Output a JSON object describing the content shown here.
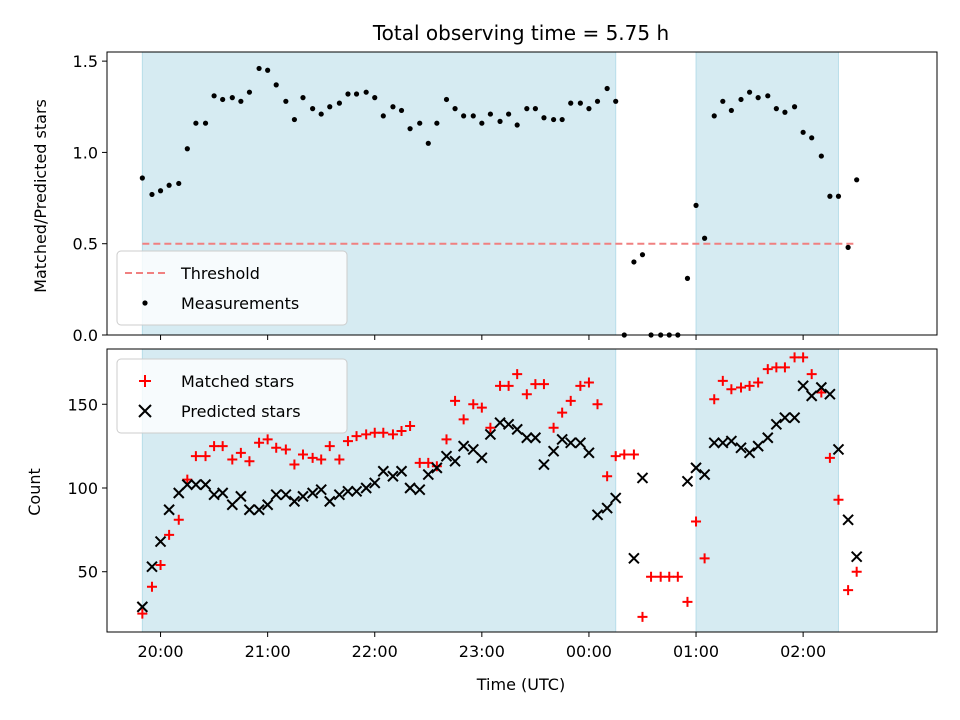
{
  "chart_data": [
    {
      "type": "scatter",
      "title": "Total observing time = 5.75 h",
      "ylabel": "Matched/Predicted stars",
      "xlabel": "",
      "ylim": [
        0,
        1.55
      ],
      "yticks": [
        0.0,
        0.5,
        1.0,
        1.5
      ],
      "ytick_labels": [
        "0.0",
        "0.5",
        "1.0",
        "1.5"
      ],
      "xticks": [
        20,
        21,
        22,
        23,
        24,
        25,
        26
      ],
      "xlim": [
        19.5,
        27.25
      ],
      "grid": false,
      "legend_position": "lower-left",
      "shaded_intervals": [
        [
          19.83,
          24.25
        ],
        [
          25.0,
          26.33
        ]
      ],
      "threshold": {
        "name": "Threshold",
        "value": 0.5,
        "x_range": [
          19.83,
          26.5
        ],
        "color": "#f08080"
      },
      "series": [
        {
          "name": "Measurements",
          "marker": "dot",
          "color": "#000000",
          "x": [
            19.83,
            19.92,
            20.0,
            20.08,
            20.17,
            20.25,
            20.33,
            20.42,
            20.5,
            20.58,
            20.67,
            20.75,
            20.83,
            20.92,
            21.0,
            21.08,
            21.17,
            21.25,
            21.33,
            21.42,
            21.5,
            21.58,
            21.67,
            21.75,
            21.83,
            21.92,
            22.0,
            22.08,
            22.17,
            22.25,
            22.33,
            22.42,
            22.5,
            22.58,
            22.67,
            22.75,
            22.83,
            22.92,
            23.0,
            23.08,
            23.17,
            23.25,
            23.33,
            23.42,
            23.5,
            23.58,
            23.67,
            23.75,
            23.83,
            23.92,
            24.0,
            24.08,
            24.17,
            24.25,
            24.33,
            24.42,
            24.5,
            24.58,
            24.67,
            24.75,
            24.83,
            24.92,
            25.0,
            25.08,
            25.17,
            25.25,
            25.33,
            25.42,
            25.5,
            25.58,
            25.67,
            25.75,
            25.83,
            25.92,
            26.0,
            26.08,
            26.17,
            26.25,
            26.33,
            26.42,
            26.5
          ],
          "y": [
            0.86,
            0.77,
            0.79,
            0.82,
            0.83,
            1.02,
            1.16,
            1.16,
            1.31,
            1.29,
            1.3,
            1.28,
            1.33,
            1.46,
            1.45,
            1.37,
            1.28,
            1.18,
            1.3,
            1.24,
            1.21,
            1.25,
            1.27,
            1.32,
            1.32,
            1.33,
            1.3,
            1.2,
            1.25,
            1.23,
            1.13,
            1.16,
            1.05,
            1.16,
            1.29,
            1.24,
            1.2,
            1.2,
            1.16,
            1.21,
            1.17,
            1.21,
            1.15,
            1.24,
            1.24,
            1.19,
            1.18,
            1.18,
            1.27,
            1.27,
            1.24,
            1.28,
            1.35,
            1.28,
            0.0,
            0.4,
            0.44,
            0.0,
            0.0,
            0.0,
            0.0,
            0.31,
            0.71,
            0.53,
            1.2,
            1.28,
            1.23,
            1.29,
            1.33,
            1.3,
            1.31,
            1.24,
            1.22,
            1.25,
            1.11,
            1.08,
            0.98,
            0.76,
            0.76,
            0.48,
            0.85
          ]
        }
      ]
    },
    {
      "type": "scatter",
      "title": "",
      "ylabel": "Count",
      "xlabel": "Time (UTC)",
      "ylim": [
        14,
        183
      ],
      "yticks": [
        50,
        100,
        150
      ],
      "ytick_labels": [
        "50",
        "100",
        "150"
      ],
      "xticks": [
        20,
        21,
        22,
        23,
        24,
        25,
        26
      ],
      "xtick_labels": [
        "20:00",
        "21:00",
        "22:00",
        "23:00",
        "00:00",
        "01:00",
        "02:00"
      ],
      "xlim": [
        19.5,
        27.25
      ],
      "grid": false,
      "legend_position": "upper-left",
      "shaded_intervals": [
        [
          19.83,
          24.25
        ],
        [
          25.0,
          26.33
        ]
      ],
      "series": [
        {
          "name": "Matched stars",
          "marker": "plus",
          "color": "#ff0000",
          "x": [
            19.83,
            19.92,
            20.0,
            20.08,
            20.17,
            20.25,
            20.33,
            20.42,
            20.5,
            20.58,
            20.67,
            20.75,
            20.83,
            20.92,
            21.0,
            21.08,
            21.17,
            21.25,
            21.33,
            21.42,
            21.5,
            21.58,
            21.67,
            21.75,
            21.83,
            21.92,
            22.0,
            22.08,
            22.17,
            22.25,
            22.33,
            22.42,
            22.5,
            22.58,
            22.67,
            22.75,
            22.83,
            22.92,
            23.0,
            23.08,
            23.17,
            23.25,
            23.33,
            23.42,
            23.5,
            23.58,
            23.67,
            23.75,
            23.83,
            23.92,
            24.0,
            24.08,
            24.17,
            24.25,
            24.33,
            24.42,
            24.5,
            24.58,
            24.67,
            24.75,
            24.83,
            24.92,
            25.0,
            25.08,
            25.17,
            25.25,
            25.33,
            25.42,
            25.5,
            25.58,
            25.67,
            25.75,
            25.83,
            25.92,
            26.0,
            26.08,
            26.17,
            26.25,
            26.33,
            26.42,
            26.5
          ],
          "y": [
            25,
            41,
            54,
            72,
            81,
            105,
            119,
            119,
            125,
            125,
            117,
            121,
            116,
            127,
            129,
            124,
            123,
            114,
            120,
            118,
            117,
            125,
            117,
            128,
            131,
            132,
            133,
            133,
            132,
            134,
            137,
            115,
            115,
            113,
            129,
            152,
            141,
            150,
            148,
            136,
            161,
            161,
            168,
            156,
            162,
            162,
            136,
            145,
            152,
            161,
            163,
            150,
            107,
            119,
            120,
            120,
            23,
            47,
            47,
            47,
            47,
            32,
            80,
            58,
            153,
            164,
            159,
            160,
            161,
            163,
            171,
            172,
            172,
            178,
            178,
            168,
            157,
            118,
            93,
            39,
            50
          ]
        },
        {
          "name": "Predicted stars",
          "marker": "x",
          "color": "#000000",
          "x": [
            19.83,
            19.92,
            20.0,
            20.08,
            20.17,
            20.25,
            20.33,
            20.42,
            20.5,
            20.58,
            20.67,
            20.75,
            20.83,
            20.92,
            21.0,
            21.08,
            21.17,
            21.25,
            21.33,
            21.42,
            21.5,
            21.58,
            21.67,
            21.75,
            21.83,
            21.92,
            22.0,
            22.08,
            22.17,
            22.25,
            22.33,
            22.42,
            22.5,
            22.58,
            22.67,
            22.75,
            22.83,
            22.92,
            23.0,
            23.08,
            23.17,
            23.25,
            23.33,
            23.42,
            23.5,
            23.58,
            23.67,
            23.75,
            23.83,
            23.92,
            24.0,
            24.08,
            24.17,
            24.25,
            24.42,
            24.5,
            24.92,
            25.0,
            25.08,
            25.17,
            25.25,
            25.33,
            25.42,
            25.5,
            25.58,
            25.67,
            25.75,
            25.83,
            25.92,
            26.0,
            26.08,
            26.17,
            26.25,
            26.33,
            26.42,
            26.5
          ],
          "y": [
            29,
            53,
            68,
            87,
            97,
            102,
            102,
            102,
            96,
            97,
            90,
            95,
            87,
            87,
            90,
            96,
            96,
            92,
            95,
            97,
            99,
            92,
            96,
            98,
            98,
            100,
            103,
            110,
            107,
            110,
            100,
            99,
            108,
            112,
            119,
            116,
            125,
            123,
            118,
            132,
            139,
            138,
            135,
            130,
            130,
            114,
            122,
            129,
            127,
            127,
            121,
            84,
            88,
            94,
            58,
            106,
            104,
            112,
            108,
            127,
            127,
            128,
            124,
            121,
            125,
            130,
            138,
            142,
            142,
            161,
            155,
            160,
            156,
            123,
            81,
            59
          ]
        }
      ]
    }
  ]
}
